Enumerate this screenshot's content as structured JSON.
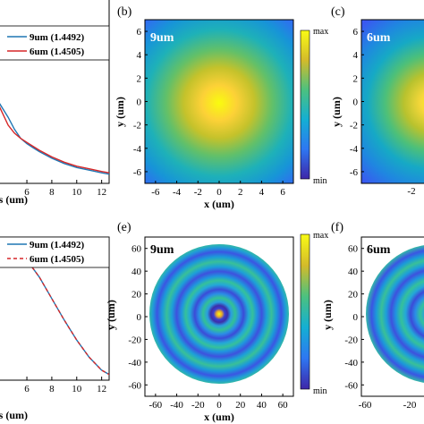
{
  "panel_letters": [
    "(b)",
    "(c)",
    "(e)",
    "(f)"
  ],
  "colorbar_labels": {
    "max": "max",
    "min": "min"
  },
  "chart_data": [
    {
      "panel": "top-left (partial)",
      "type": "line",
      "xlabel": "us (um)",
      "xlim": [
        3.7,
        12.6
      ],
      "xticks": [
        6,
        8,
        10,
        12
      ],
      "grid": false,
      "legend_position": "top-right",
      "series": [
        {
          "name": "9um (1.4492)",
          "color": "#1f77b4",
          "style": "solid",
          "x": [
            3.7,
            4.5,
            5,
            5.5,
            6,
            6.5,
            7,
            8,
            9,
            10,
            11,
            12,
            12.6
          ],
          "y": [
            0.56,
            0.5,
            0.455,
            0.42,
            0.4,
            0.385,
            0.37,
            0.345,
            0.325,
            0.31,
            0.3,
            0.29,
            0.285
          ]
        },
        {
          "name": "6um (1.4505)",
          "color": "#d62728",
          "style": "solid",
          "x": [
            3.7,
            4.5,
            5,
            5.5,
            6,
            6.5,
            7,
            8,
            9,
            10,
            11,
            12,
            12.6
          ],
          "y": [
            0.55,
            0.47,
            0.44,
            0.42,
            0.405,
            0.39,
            0.375,
            0.35,
            0.33,
            0.315,
            0.305,
            0.295,
            0.29
          ]
        }
      ]
    },
    {
      "panel": "(b)",
      "type": "heatmap",
      "title": "9um",
      "xlabel": "x (um)",
      "ylabel": "y (um)",
      "xlim": [
        -7,
        7
      ],
      "ylim": [
        -7,
        7
      ],
      "xticks": [
        -6,
        -4,
        -2,
        0,
        2,
        4,
        6
      ],
      "yticks": [
        6,
        4,
        2,
        0,
        -2,
        -4,
        -6
      ],
      "pattern": "single gaussian spot centered at origin",
      "colormap": "parula",
      "colorbar": [
        "max",
        "min"
      ]
    },
    {
      "panel": "(c) (partial)",
      "type": "heatmap",
      "title": "6um",
      "yticks": [
        6,
        4,
        2,
        0,
        -2,
        -4,
        -6
      ],
      "xticks": [
        -2
      ],
      "pattern": "gaussian spot",
      "colormap": "parula"
    },
    {
      "panel": "bottom-left (partial)",
      "type": "line",
      "xlabel": "us (um)",
      "xlim": [
        3.7,
        12.6
      ],
      "xticks": [
        6,
        8,
        10,
        12
      ],
      "grid": false,
      "legend_position": "top-right",
      "series": [
        {
          "name": "9um (1.4492)",
          "color": "#1f77b4",
          "style": "solid",
          "x": [
            3.7,
            4.5,
            5,
            6,
            7,
            8,
            9,
            10,
            11,
            12,
            12.6
          ],
          "y": [
            0.97,
            0.95,
            0.92,
            0.84,
            0.72,
            0.57,
            0.42,
            0.28,
            0.16,
            0.07,
            0.04
          ]
        },
        {
          "name": "6um (1.4505)",
          "color": "#d62728",
          "style": "dashed",
          "x": [
            3.7,
            4.5,
            5,
            6,
            7,
            8,
            9,
            10,
            11,
            12,
            12.6
          ],
          "y": [
            0.97,
            0.95,
            0.92,
            0.84,
            0.72,
            0.57,
            0.42,
            0.28,
            0.16,
            0.07,
            0.04
          ]
        }
      ]
    },
    {
      "panel": "(e)",
      "type": "heatmap",
      "title": "9um",
      "xlabel": "x (um)",
      "ylabel": "y (um)",
      "xlim": [
        -70,
        70
      ],
      "ylim": [
        -70,
        70
      ],
      "xticks": [
        -60,
        -40,
        -20,
        0,
        20,
        40,
        60
      ],
      "yticks": [
        60,
        40,
        20,
        0,
        -20,
        -40,
        -60
      ],
      "pattern": "concentric rings inside circular aperture radius ~62.5um, bright spot at center",
      "colormap": "parula",
      "colorbar": [
        "max",
        "min"
      ]
    },
    {
      "panel": "(f) (partial)",
      "type": "heatmap",
      "title": "6um",
      "yticks": [
        60,
        40,
        20,
        0,
        -20,
        -40,
        -60
      ],
      "xticks": [
        -60,
        -20
      ],
      "pattern": "concentric rings inside circular aperture",
      "colormap": "parula"
    }
  ]
}
